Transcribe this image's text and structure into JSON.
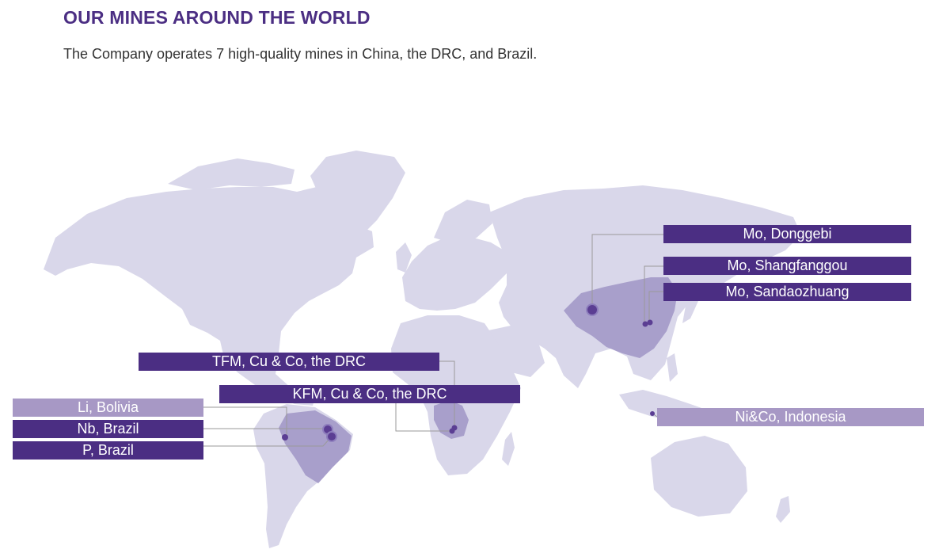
{
  "header": {
    "title": "OUR MINES AROUND THE WORLD",
    "subtitle": "The Company operates 7 high-quality mines in China, the DRC, and Brazil."
  },
  "colors": {
    "brand": "#4b2e83",
    "label_dark": "#4b2e83",
    "label_light": "#a798c5",
    "land": "#d9d7ea",
    "highlight_country": "#a89fcb",
    "leader_line": "#9a9a9a",
    "marker": "#5b3e93"
  },
  "mines": [
    {
      "label": "Mo, Donggebi",
      "style": "dark"
    },
    {
      "label": "Mo, Shangfanggou",
      "style": "dark"
    },
    {
      "label": "Mo, Sandaozhuang",
      "style": "dark"
    },
    {
      "label": "Ni&Co, Indonesia",
      "style": "light"
    },
    {
      "label": "TFM, Cu & Co, the DRC",
      "style": "dark"
    },
    {
      "label": "KFM, Cu & Co, the DRC",
      "style": "dark"
    },
    {
      "label": "Li, Bolivia",
      "style": "light"
    },
    {
      "label": "Nb, Brazil",
      "style": "dark"
    },
    {
      "label": "P, Brazil",
      "style": "dark"
    }
  ]
}
